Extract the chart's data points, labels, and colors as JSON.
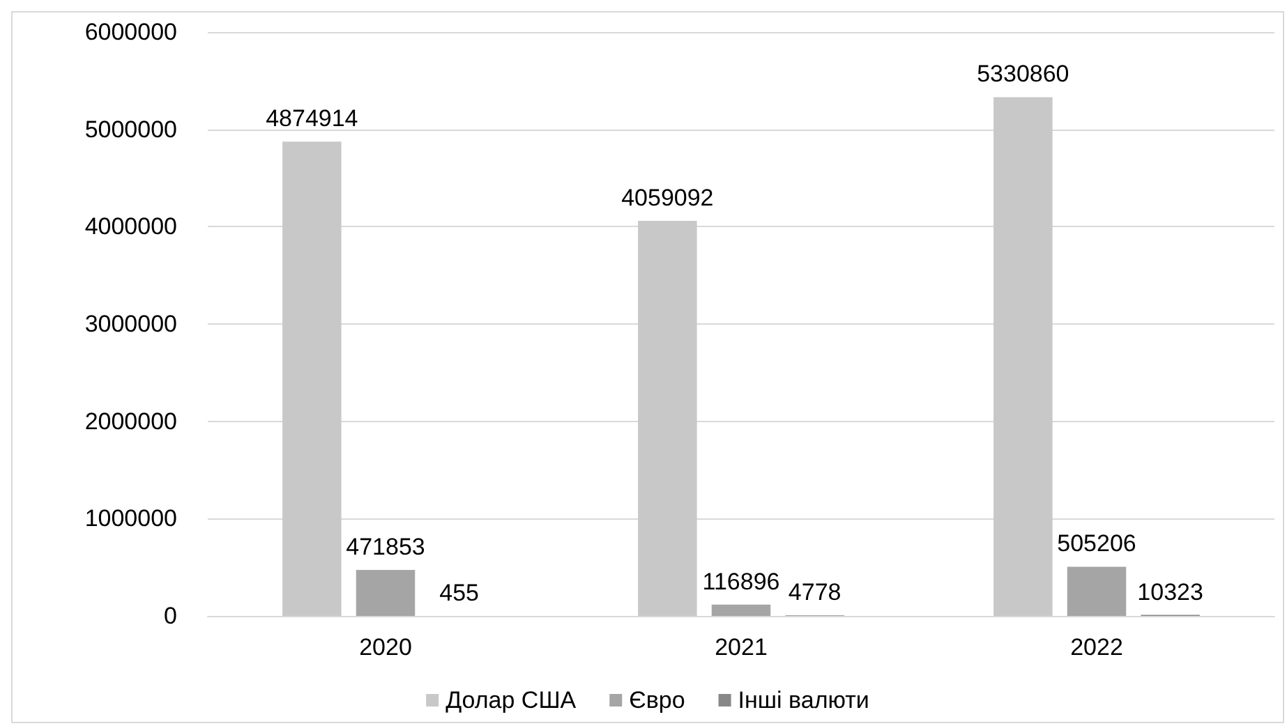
{
  "chart_data": {
    "type": "bar",
    "categories": [
      "2020",
      "2021",
      "2022"
    ],
    "series": [
      {
        "name": "Долар США",
        "color": "#c8c8c8",
        "values": [
          4874914,
          4059092,
          5330860
        ]
      },
      {
        "name": "Євро",
        "color": "#a5a5a5",
        "values": [
          471853,
          116896,
          505206
        ]
      },
      {
        "name": "Інші валюти",
        "color": "#878787",
        "values": [
          455,
          4778,
          10323
        ]
      }
    ],
    "ylim": [
      0,
      6000000
    ],
    "yticks": [
      0,
      1000000,
      2000000,
      3000000,
      4000000,
      5000000,
      6000000
    ],
    "grid": "y",
    "legend": "bottom",
    "data_labels": true
  }
}
